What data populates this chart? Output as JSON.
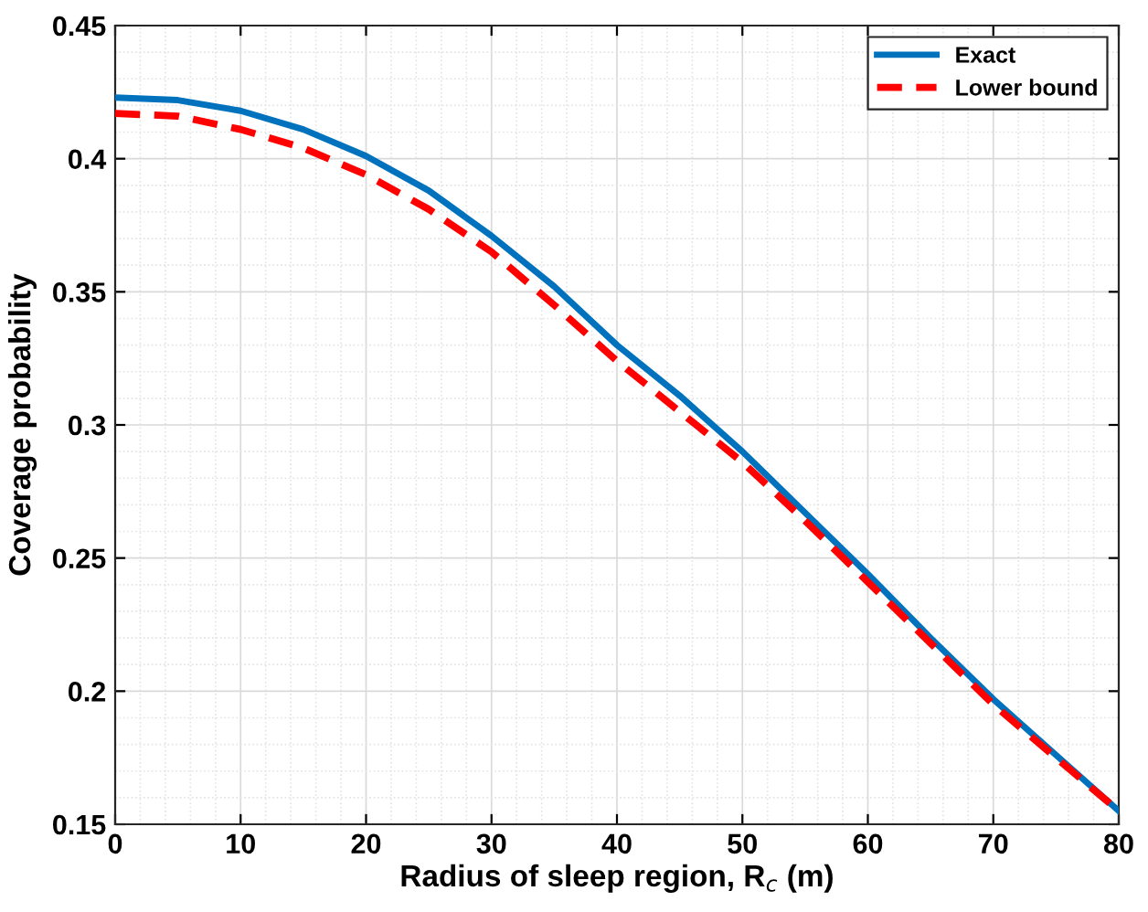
{
  "chart_data": {
    "type": "line",
    "xlabel": "Radius of sleep region, R$_{c}$ (m)",
    "ylabel": "Coverage probability",
    "x": [
      0,
      5,
      10,
      15,
      20,
      25,
      30,
      35,
      40,
      45,
      50,
      55,
      60,
      65,
      70,
      75,
      80
    ],
    "series": [
      {
        "name": "Exact",
        "color": "#0072bd",
        "line_style": "solid",
        "values": [
          0.423,
          0.422,
          0.418,
          0.411,
          0.401,
          0.388,
          0.371,
          0.352,
          0.33,
          0.311,
          0.29,
          0.267,
          0.244,
          0.22,
          0.197,
          0.176,
          0.155
        ]
      },
      {
        "name": "Lower bound",
        "color": "#ff0000",
        "line_style": "dashed",
        "values": [
          0.417,
          0.416,
          0.411,
          0.404,
          0.394,
          0.381,
          0.365,
          0.345,
          0.324,
          0.305,
          0.286,
          0.264,
          0.241,
          0.218,
          0.195,
          0.175,
          0.155
        ]
      }
    ],
    "xlim": [
      0,
      80
    ],
    "ylim": [
      0.15,
      0.45
    ],
    "xticks": [
      0,
      10,
      20,
      30,
      40,
      50,
      60,
      70,
      80
    ],
    "yticks": [
      0.15,
      {
        "value": 0.2,
        "label": "0.2"
      },
      0.25,
      {
        "value": 0.3,
        "label": "0.3"
      },
      0.35,
      {
        "value": 0.4,
        "label": "0.4"
      },
      0.45
    ],
    "grid": true,
    "legend": "top right",
    "marker": "none"
  }
}
